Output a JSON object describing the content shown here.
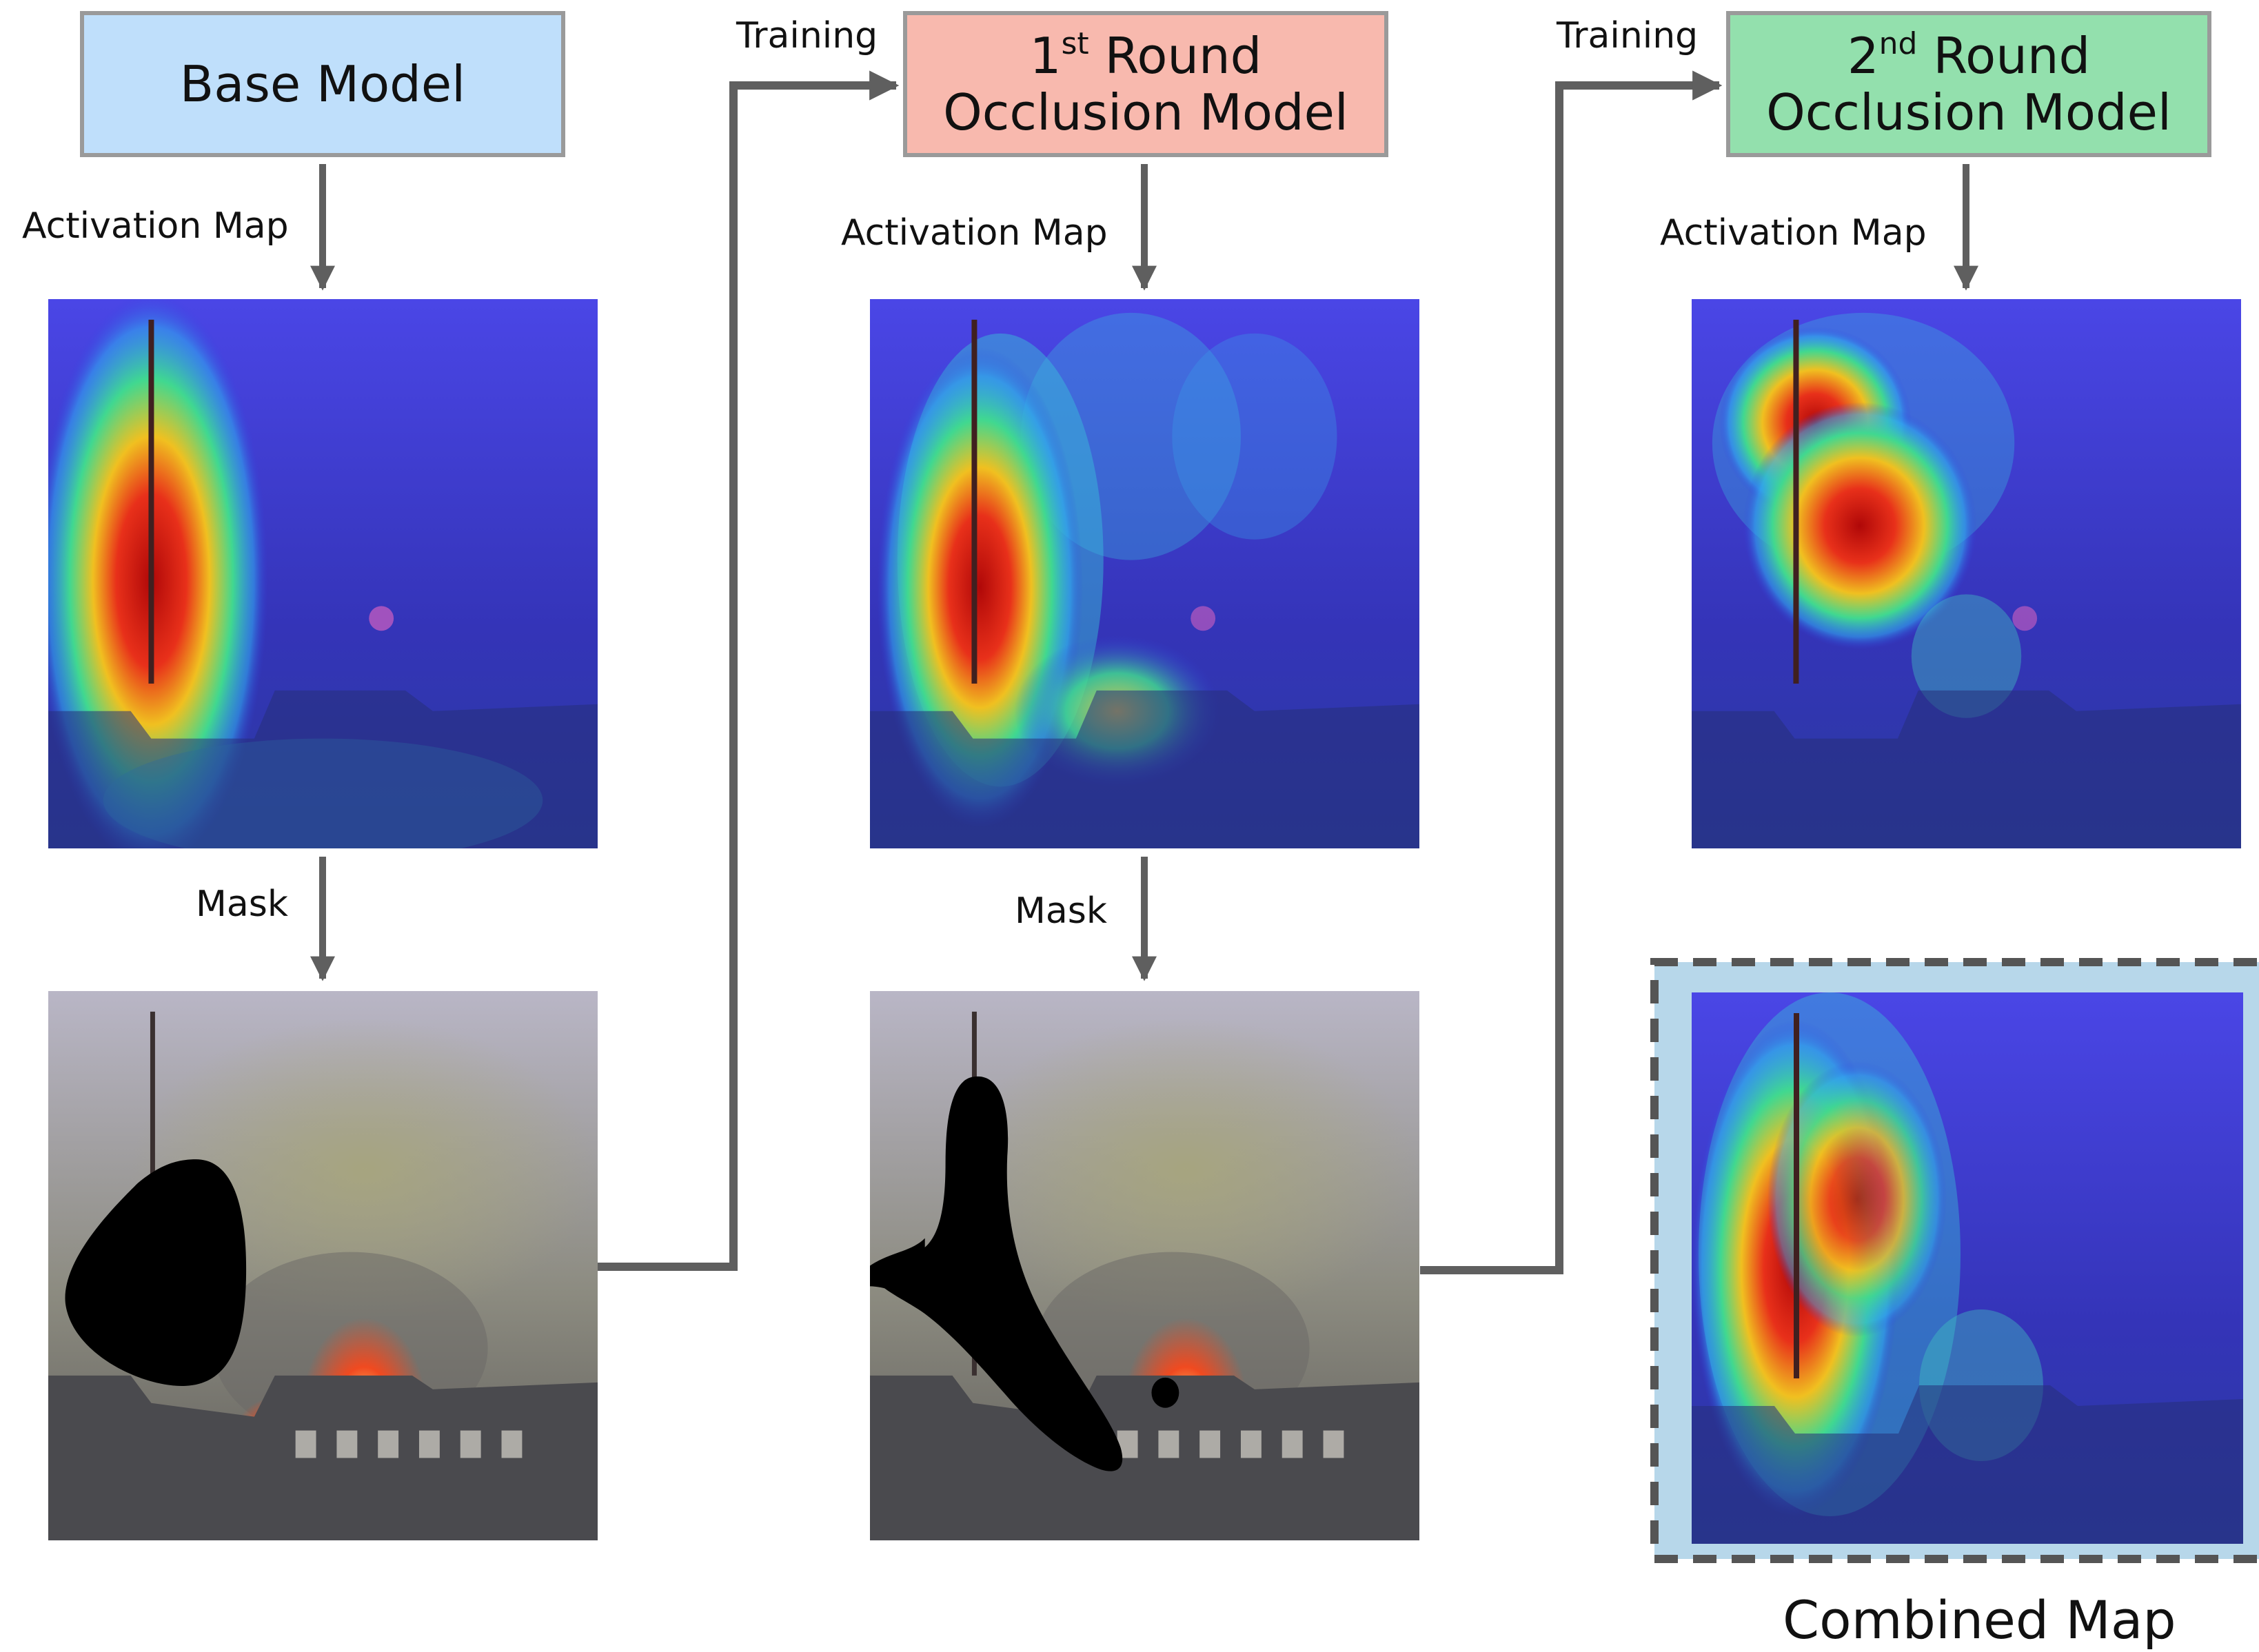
{
  "boxes": {
    "base": {
      "label": "Base Model",
      "color": "#bfdffb"
    },
    "round1": {
      "ordinal_num": "1",
      "ordinal_suffix": "st",
      "word": "Round",
      "line2": "Occlusion Model",
      "color": "#f8b9ae"
    },
    "round2": {
      "ordinal_num": "2",
      "ordinal_suffix": "nd",
      "word": "Round",
      "line2": "Occlusion Model",
      "color": "#93e0ad"
    }
  },
  "labels": {
    "activation_map": "Activation Map",
    "mask": "Mask",
    "training": "Training",
    "combined_map": "Combined Map"
  },
  "colors": {
    "arrow": "#5f5f5f",
    "box_border": "#9a9a9a",
    "combined_frame": "#b7d7ea",
    "combined_dash": "#555555",
    "heat_low": "#3a3ad8",
    "heat_high": "#d81c10"
  }
}
